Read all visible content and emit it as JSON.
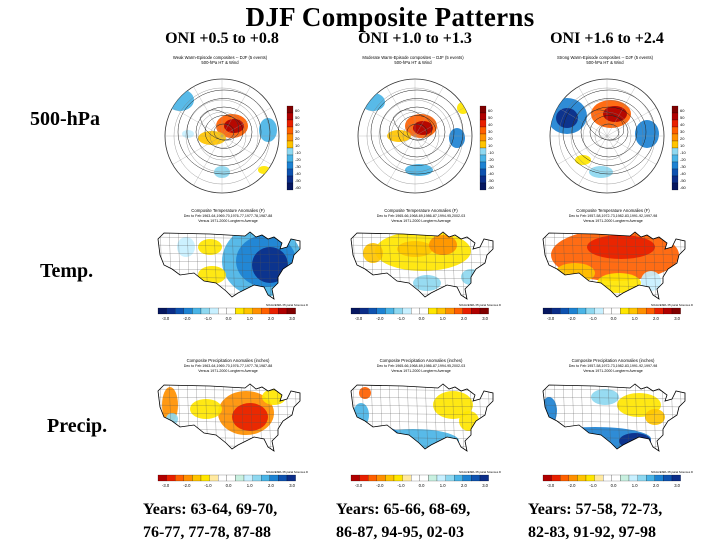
{
  "title": "DJF Composite Patterns",
  "columns": [
    {
      "oni": "ONI +0.5 to +0.8",
      "years_line1": "Years: 63-64, 69-70,",
      "years_line2": "76-77, 77-78, 87-88",
      "hgt_caption1": "Weak Warm-Episode composites -- DJF (5 events)",
      "hgt_caption2": "500-hPa HT & Wind",
      "temp_caption1": "Composite Temperature Anomalies (F)",
      "temp_caption2": "Dec to Feb 1963-64,1969-70,1976-77,1977-78,1987-88",
      "temp_caption3": "Versus 1971-2000 Longterm Average",
      "precip_caption1": "Composite Precipitation Anomalies (inches)",
      "precip_caption2": "Dec to Feb 1963-64,1969-70,1976-77,1977-78,1987-88",
      "precip_caption3": "Versus 1971-2000 Longterm Average"
    },
    {
      "oni": "ONI +1.0 to +1.3",
      "years_line1": "Years: 65-66, 68-69,",
      "years_line2": "86-87, 94-95, 02-03",
      "hgt_caption1": "Moderate Warm-Episode composites -- DJF (5 events)",
      "hgt_caption2": "500-hPa HT & Wind",
      "temp_caption1": "Composite Temperature Anomalies (F)",
      "temp_caption2": "Dec to Feb 1965-66,1968-69,1986-87,1994-95,2002-03",
      "temp_caption3": "Versus 1971-2000 Longterm Average",
      "precip_caption1": "Composite Precipitation Anomalies (inches)",
      "precip_caption2": "Dec to Feb 1965-66,1968-69,1986-87,1994-95,2002-03",
      "precip_caption3": "Versus 1971-2000 Longterm Average"
    },
    {
      "oni": "ONI +1.6 to +2.4",
      "years_line1": "Years: 57-58, 72-73,",
      "years_line2": "82-83, 91-92, 97-98",
      "hgt_caption1": "Strong Warm-Episode composites -- DJF (5 events)",
      "hgt_caption2": "500-hPa HT & Wind",
      "temp_caption1": "Composite Temperature Anomalies (F)",
      "temp_caption2": "Dec to Feb 1957-58,1972-73,1982-83,1991-92,1997-98",
      "temp_caption3": "Versus 1971-2000 Longterm Average",
      "precip_caption1": "Composite Precipitation Anomalies (inches)",
      "precip_caption2": "Dec to Feb 1957-58,1972-73,1982-83,1991-92,1997-98",
      "precip_caption3": "Versus 1971-2000 Longterm Average"
    }
  ],
  "rows": {
    "hgt_label": "500-hPa",
    "temp_label": "Temp.",
    "precip_label": "Precip."
  },
  "credit": "NOAA/ESRL Physical Sciences Division",
  "hgt_scale": [
    "60",
    "50",
    "40",
    "30",
    "20",
    "10",
    "-10",
    "-20",
    "-30",
    "-40",
    "-50",
    "-60"
  ],
  "temp_scale": [
    "-3.0",
    "-2.0",
    "-1.0",
    "0.0",
    "1.0",
    "2.0",
    "3.0"
  ],
  "precip_scale": [
    "-3.0",
    "-2.0",
    "-1.0",
    "0.0",
    "1.0",
    "2.0",
    "3.0"
  ],
  "colors": {
    "warm": [
      "#ffe600",
      "#ffc400",
      "#ff9000",
      "#ff6000",
      "#e82000",
      "#b00000",
      "#800000"
    ],
    "cool": [
      "#c8f0ff",
      "#8ed8f0",
      "#4ab4e6",
      "#1d82d2",
      "#0e52b0",
      "#0b2d88",
      "#061760"
    ],
    "neutral": "#ffffff"
  }
}
